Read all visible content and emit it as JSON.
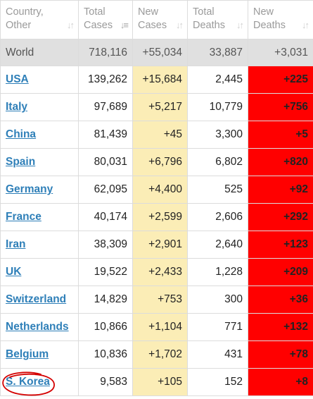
{
  "headers": {
    "country": [
      "Country,",
      "Other"
    ],
    "total_cases": [
      "Total",
      "Cases"
    ],
    "new_cases": [
      "New",
      "Cases"
    ],
    "total_deaths": [
      "Total",
      "Deaths"
    ],
    "new_deaths": [
      "New",
      "Deaths"
    ],
    "sort_icon": "sort-arrows",
    "active_sort_icon": "sort-descending"
  },
  "world": {
    "name": "World",
    "total_cases": "718,116",
    "new_cases": "+55,034",
    "total_deaths": "33,887",
    "new_deaths": "+3,031"
  },
  "rows": [
    {
      "name": "USA",
      "total_cases": "139,262",
      "new_cases": "+15,684",
      "total_deaths": "2,445",
      "new_deaths": "+225"
    },
    {
      "name": "Italy",
      "total_cases": "97,689",
      "new_cases": "+5,217",
      "total_deaths": "10,779",
      "new_deaths": "+756"
    },
    {
      "name": "China",
      "total_cases": "81,439",
      "new_cases": "+45",
      "total_deaths": "3,300",
      "new_deaths": "+5"
    },
    {
      "name": "Spain",
      "total_cases": "80,031",
      "new_cases": "+6,796",
      "total_deaths": "6,802",
      "new_deaths": "+820"
    },
    {
      "name": "Germany",
      "total_cases": "62,095",
      "new_cases": "+4,400",
      "total_deaths": "525",
      "new_deaths": "+92"
    },
    {
      "name": "France",
      "total_cases": "40,174",
      "new_cases": "+2,599",
      "total_deaths": "2,606",
      "new_deaths": "+292"
    },
    {
      "name": "Iran",
      "total_cases": "38,309",
      "new_cases": "+2,901",
      "total_deaths": "2,640",
      "new_deaths": "+123"
    },
    {
      "name": "UK",
      "total_cases": "19,522",
      "new_cases": "+2,433",
      "total_deaths": "1,228",
      "new_deaths": "+209"
    },
    {
      "name": "Switzerland",
      "total_cases": "14,829",
      "new_cases": "+753",
      "total_deaths": "300",
      "new_deaths": "+36"
    },
    {
      "name": "Netherlands",
      "total_cases": "10,866",
      "new_cases": "+1,104",
      "total_deaths": "771",
      "new_deaths": "+132"
    },
    {
      "name": "Belgium",
      "total_cases": "10,836",
      "new_cases": "+1,702",
      "total_deaths": "431",
      "new_deaths": "+78"
    },
    {
      "name": "S. Korea",
      "total_cases": "9,583",
      "new_cases": "+105",
      "total_deaths": "152",
      "new_deaths": "+8"
    }
  ],
  "colors": {
    "new_cases_bg": "#fbedb6",
    "new_deaths_bg": "#ff0000",
    "link": "#2e7fb8",
    "world_bg": "#e0e0e0",
    "annotation": "#d40000"
  },
  "annotation": {
    "shape": "hand-drawn-circle",
    "target": "S. Korea"
  }
}
